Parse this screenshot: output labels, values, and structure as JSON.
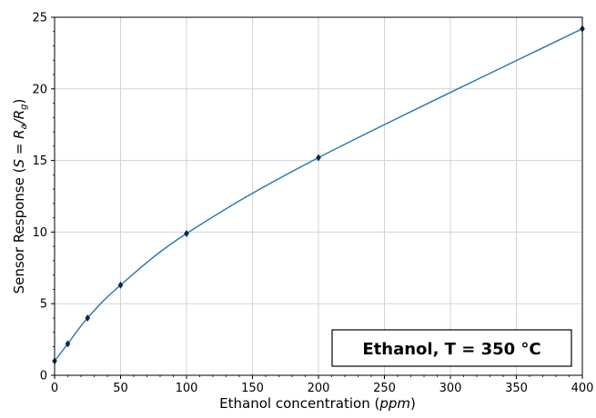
{
  "chart_data": {
    "type": "line",
    "title": "",
    "xlabel_main": "Ethanol concentration (",
    "xlabel_unit": "ppm",
    "xlabel_close": ")",
    "ylabel_main": "Sensor Response (",
    "ylabel_S": "S",
    "ylabel_eq": " = ",
    "ylabel_Ra": "R",
    "ylabel_a": "a",
    "ylabel_slash": "/",
    "ylabel_Rg": "R",
    "ylabel_g": "g",
    "ylabel_close": ")",
    "xlim": [
      0,
      400
    ],
    "ylim": [
      0,
      25
    ],
    "xticks": [
      0,
      50,
      100,
      150,
      200,
      250,
      300,
      350,
      400
    ],
    "yticks": [
      0,
      5,
      10,
      15,
      20,
      25
    ],
    "grid": true,
    "annotation": "Ethanol, T = 350 °C",
    "annotation_position": "bottom-right",
    "series": [
      {
        "x": [
          0,
          10,
          25,
          50,
          100,
          200,
          400
        ],
        "y": [
          1.0,
          2.2,
          4.0,
          6.3,
          9.9,
          15.2,
          24.2
        ],
        "error": [
          0.15,
          0.2,
          0.2,
          0.2,
          0.2,
          0.2,
          0.2
        ],
        "color": "#1f77b4",
        "marker_color": "#0b2a4a"
      }
    ]
  }
}
